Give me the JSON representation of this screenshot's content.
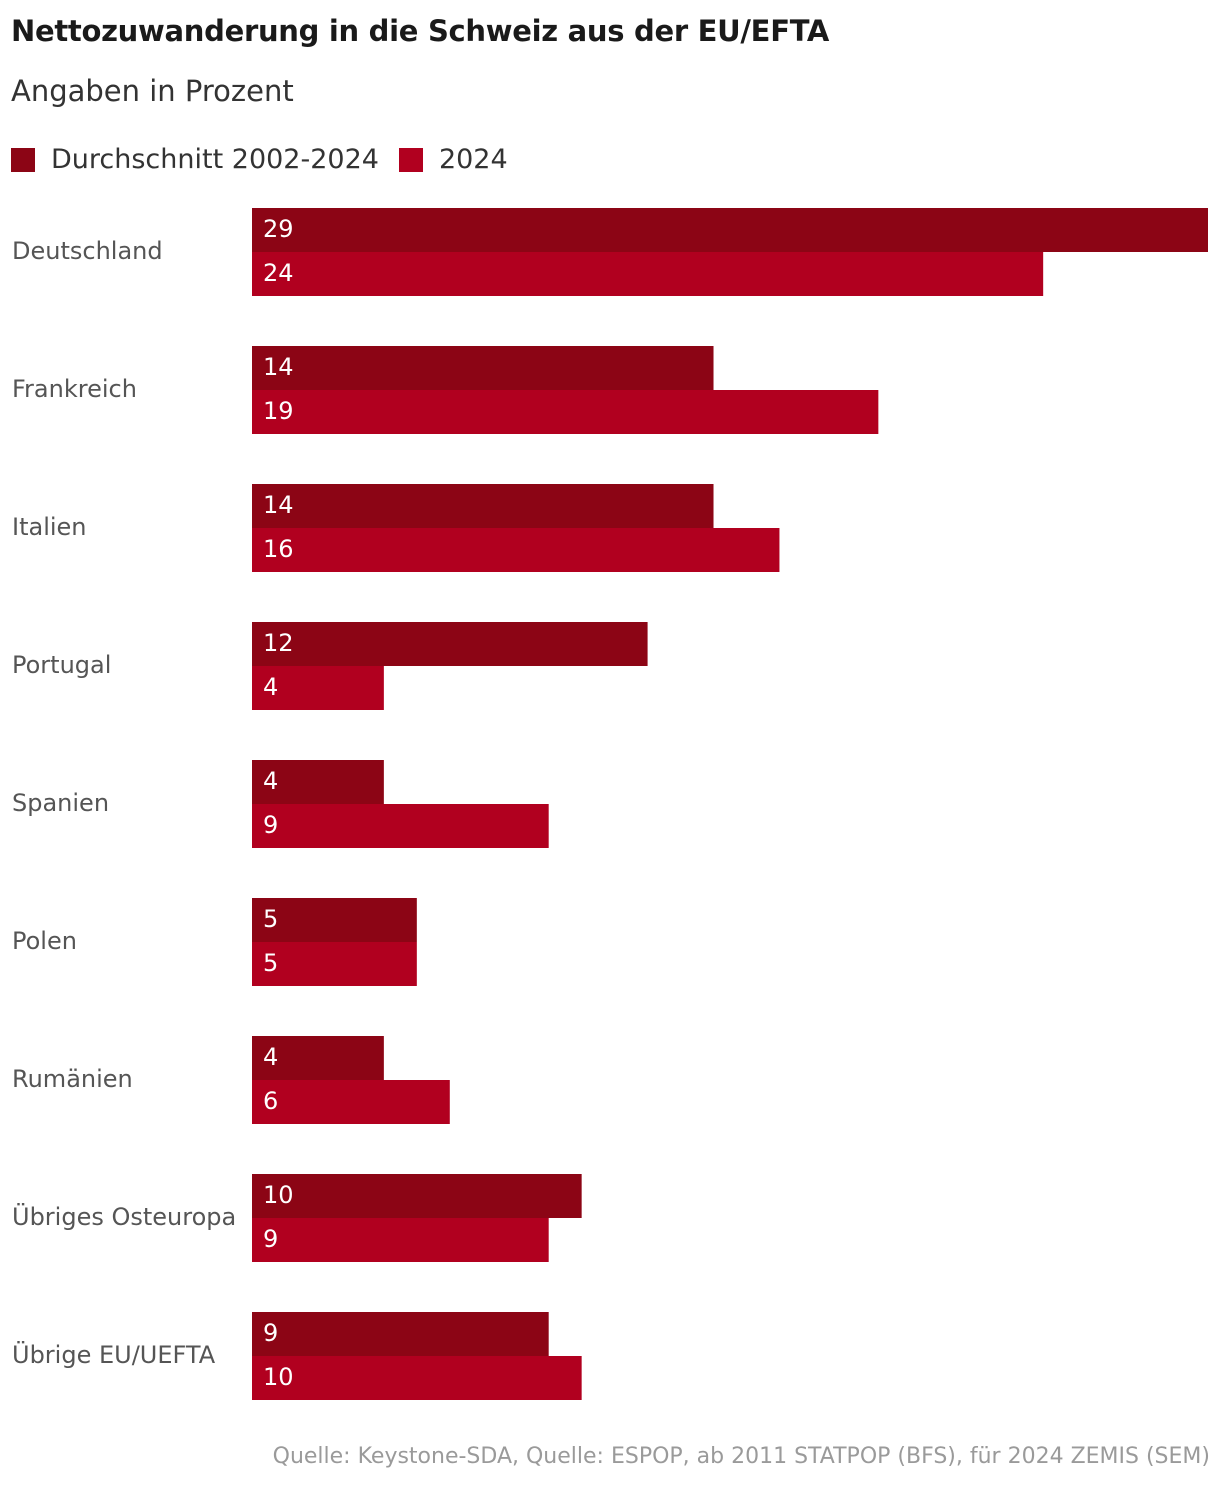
{
  "colors": {
    "series_avg": "#8c0515",
    "series_2024": "#b1001f",
    "category_text": "#555555",
    "value_text": "#ffffff"
  },
  "chart_data": {
    "type": "bar",
    "orientation": "horizontal",
    "title": "Nettozuwanderung in die Schweiz aus der EU/EFTA",
    "subtitle": "Angaben in Prozent",
    "categories": [
      "Deutschland",
      "Frankreich",
      "Italien",
      "Portugal",
      "Spanien",
      "Polen",
      "Rumänien",
      "Übriges Osteuropa",
      "Übrige EU/UEFTA"
    ],
    "series": [
      {
        "name": "Durchschnitt 2002-2024",
        "values": [
          29,
          14,
          14,
          12,
          4,
          5,
          4,
          10,
          9
        ]
      },
      {
        "name": "2024",
        "values": [
          24,
          19,
          16,
          4,
          9,
          5,
          6,
          9,
          10
        ]
      }
    ],
    "xlim": [
      0,
      29
    ],
    "grid": false,
    "legend_position": "top-left",
    "source": "Quelle: Keystone-SDA, Quelle: ESPOP, ab 2011 STATPOP (BFS), für 2024 ZEMIS (SEM)"
  }
}
